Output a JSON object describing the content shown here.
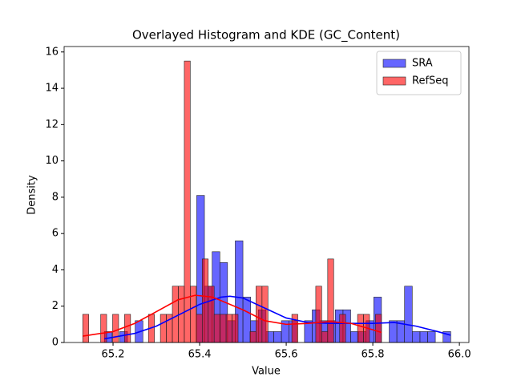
{
  "chart_data": {
    "type": "histogram",
    "title": "Overlayed Histogram and KDE (GC_Content)",
    "xlabel": "Value",
    "ylabel": "Density",
    "xlim": [
      65.087,
      66.022
    ],
    "ylim": [
      0,
      16.3
    ],
    "xticks": [
      65.2,
      65.4,
      65.6,
      65.8,
      {
        "value": 66,
        "label": "66.0"
      }
    ],
    "yticks": [
      0,
      2,
      4,
      6,
      8,
      10,
      12,
      14,
      16
    ],
    "legend": "upper right",
    "series": [
      {
        "name": "SRA",
        "color": "#0000ff",
        "bins": [
          65.18,
          65.1978,
          65.2156,
          65.2333,
          65.2511,
          65.2689,
          65.2867,
          65.3044,
          65.3222,
          65.34,
          65.3578,
          65.3756,
          65.3933,
          65.4111,
          65.4289,
          65.4467,
          65.4644,
          65.4822,
          65.5,
          65.5178,
          65.5356,
          65.5533,
          65.5711,
          65.5889,
          65.6067,
          65.6244,
          65.6422,
          65.66,
          65.6778,
          65.6956,
          65.7133,
          65.7311,
          65.7489,
          65.7667,
          65.7844,
          65.8022,
          65.82,
          65.8378,
          65.8556,
          65.8733,
          65.8911,
          65.9089,
          65.9267,
          65.9444,
          65.9622,
          65.98
        ],
        "values": [
          0.6,
          0,
          0.6,
          0,
          1.2,
          0,
          0,
          0,
          0,
          0,
          0,
          0,
          8.1,
          3.1,
          5.0,
          4.4,
          1.2,
          5.6,
          2.5,
          1.2,
          1.8,
          0.6,
          0.6,
          1.2,
          1.2,
          0,
          1.2,
          1.8,
          1.2,
          1.2,
          1.8,
          1.8,
          0.6,
          0.6,
          1.2,
          2.5,
          0,
          1.2,
          1.2,
          3.1,
          0.6,
          0.6,
          0.6,
          0,
          0.6
        ],
        "kde": {
          "x": [
            65.18,
            65.25,
            65.3,
            65.35,
            65.4,
            65.45,
            65.47,
            65.5,
            65.55,
            65.6,
            65.65,
            65.7,
            65.75,
            65.8,
            65.85,
            65.9,
            65.95,
            65.98
          ],
          "y": [
            0.2,
            0.5,
            0.9,
            1.5,
            2.1,
            2.5,
            2.55,
            2.45,
            1.9,
            1.35,
            1.1,
            1.05,
            1.05,
            1.05,
            1.1,
            0.9,
            0.6,
            0.4
          ]
        }
      },
      {
        "name": "RefSeq",
        "color": "#ff0000",
        "bins": [
          65.13,
          65.1438,
          65.1576,
          65.1714,
          65.1852,
          65.199,
          65.2128,
          65.2266,
          65.2404,
          65.2542,
          65.268,
          65.2818,
          65.2956,
          65.3094,
          65.3232,
          65.337,
          65.3508,
          65.3646,
          65.3784,
          65.3922,
          65.406,
          65.4198,
          65.4336,
          65.4474,
          65.4612,
          65.475,
          65.4888,
          65.5026,
          65.5164,
          65.5302,
          65.544,
          65.5578,
          65.5716,
          65.5854,
          65.5992,
          65.613,
          65.6268,
          65.6406,
          65.6544,
          65.6682,
          65.682,
          65.6958,
          65.7096,
          65.7234,
          65.7372,
          65.751,
          65.7648,
          65.7786,
          65.7924,
          65.8062,
          65.82
        ],
        "values": [
          1.55,
          0,
          0,
          1.55,
          0,
          1.55,
          0,
          1.55,
          0,
          0,
          0,
          1.55,
          0,
          1.55,
          1.55,
          3.1,
          3.1,
          15.5,
          3.1,
          1.55,
          4.6,
          3.1,
          1.55,
          1.55,
          1.55,
          1.55,
          0,
          0,
          0.6,
          3.1,
          3.1,
          0,
          0,
          0,
          0,
          1.55,
          0,
          0,
          0,
          3.1,
          0.6,
          4.6,
          0,
          1.55,
          0,
          0,
          1.55,
          1.55,
          0,
          1.55
        ],
        "kde": {
          "x": [
            65.13,
            65.2,
            65.25,
            65.3,
            65.35,
            65.39,
            65.43,
            65.5,
            65.55,
            65.6,
            65.65,
            65.7,
            65.75,
            65.8,
            65.82
          ],
          "y": [
            0.35,
            0.6,
            1.05,
            1.7,
            2.35,
            2.6,
            2.5,
            1.8,
            1.2,
            1.0,
            1.05,
            1.15,
            1.05,
            0.7,
            0.55
          ]
        }
      }
    ]
  }
}
